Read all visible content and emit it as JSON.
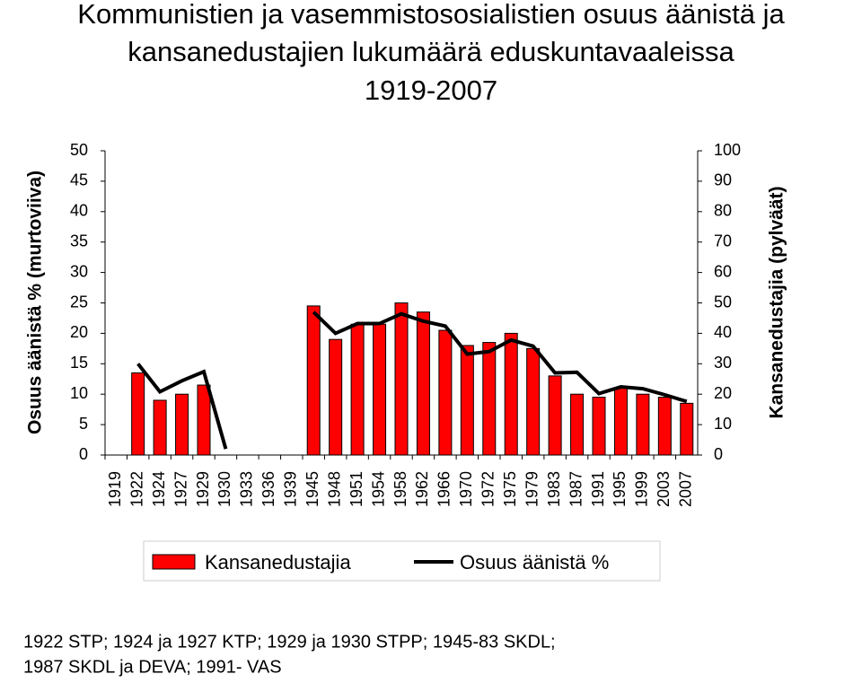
{
  "chart_data": {
    "type": "bar",
    "title": [
      "Kommunistien ja vasemmistososialistien osuus äänistä ja",
      "kansanedustajien lukumäärä eduskuntavaaleissa",
      "1919-2007"
    ],
    "y_label": "Osuus äänistä % (murtoviiva)",
    "y2_label": "Kansanedustajia (pylväät)",
    "categories": [
      "1919",
      "1922",
      "1924",
      "1927",
      "1929",
      "1930",
      "1933",
      "1936",
      "1939",
      "1945",
      "1948",
      "1951",
      "1954",
      "1958",
      "1962",
      "1966",
      "1970",
      "1972",
      "1975",
      "1979",
      "1983",
      "1987",
      "1991",
      "1995",
      "1999",
      "2003",
      "2007"
    ],
    "series": [
      {
        "name": "Kansanedustajia",
        "type": "bar",
        "axis": "y2",
        "color": "#ff0000",
        "values": [
          null,
          27,
          18,
          20,
          23,
          0,
          null,
          null,
          null,
          49,
          38,
          43,
          43,
          50,
          47,
          41,
          36,
          37,
          40,
          35,
          26,
          20,
          19,
          22,
          20,
          19,
          17
        ]
      },
      {
        "name": "Osuus äänistä %",
        "type": "line",
        "color": "#000000",
        "values": [
          null,
          15.0,
          10.4,
          12.2,
          13.7,
          1.0,
          null,
          null,
          null,
          23.5,
          20.0,
          21.6,
          21.6,
          23.2,
          22.0,
          21.2,
          16.6,
          17.0,
          18.9,
          17.9,
          13.5,
          13.6,
          10.1,
          11.2,
          10.9,
          9.9,
          8.8
        ]
      }
    ],
    "ylim": [
      0,
      50
    ],
    "yticks": [
      0,
      5,
      10,
      15,
      20,
      25,
      30,
      35,
      40,
      45,
      50
    ],
    "y2lim": [
      0,
      100
    ],
    "y2ticks": [
      0,
      10,
      20,
      30,
      40,
      50,
      60,
      70,
      80,
      90,
      100
    ],
    "grid": false,
    "footnote": [
      "1922 STP; 1924 ja 1927 KTP; 1929 ja 1930 STPP; 1945-83 SKDL;",
      "1987 SKDL ja DEVA; 1991- VAS"
    ]
  }
}
